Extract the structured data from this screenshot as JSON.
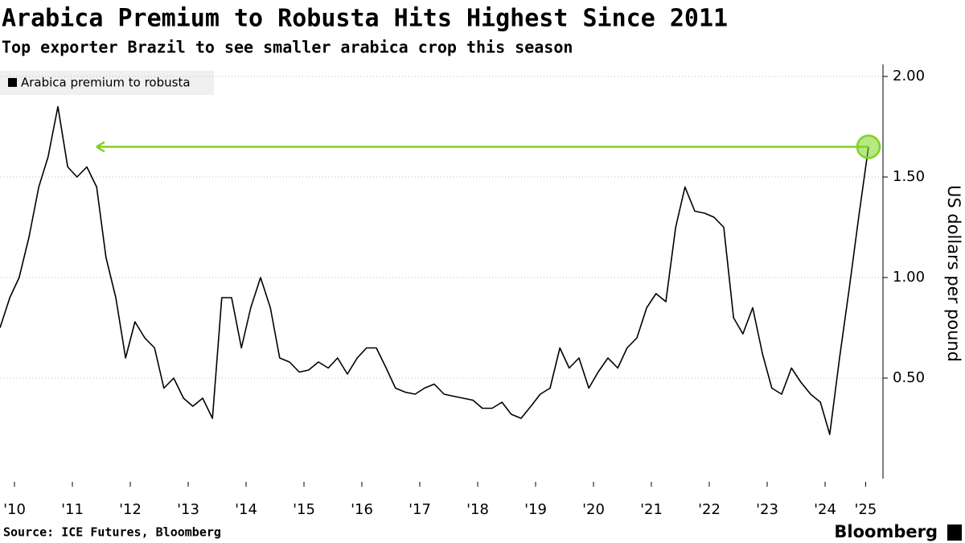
{
  "chart_data": {
    "type": "line",
    "title": "Arabica Premium to Robusta Hits Highest Since 2011",
    "subtitle": "Top exporter Brazil to see smaller arabica crop this season",
    "source": "Source: ICE Futures, Bloomberg",
    "brand": "Bloomberg",
    "y_label": "US dollars per pound",
    "x": [
      2010.25,
      2010.42,
      2010.58,
      2010.75,
      2010.92,
      2011.08,
      2011.25,
      2011.42,
      2011.58,
      2011.75,
      2011.92,
      2012.08,
      2012.25,
      2012.42,
      2012.58,
      2012.75,
      2012.92,
      2013.08,
      2013.25,
      2013.42,
      2013.58,
      2013.75,
      2013.92,
      2014.08,
      2014.25,
      2014.42,
      2014.58,
      2014.75,
      2014.92,
      2015.08,
      2015.25,
      2015.42,
      2015.58,
      2015.75,
      2015.92,
      2016.08,
      2016.25,
      2016.42,
      2016.58,
      2016.75,
      2016.92,
      2017.08,
      2017.25,
      2017.42,
      2017.58,
      2017.75,
      2017.92,
      2018.08,
      2018.25,
      2018.42,
      2018.58,
      2018.75,
      2018.92,
      2019.08,
      2019.25,
      2019.42,
      2019.58,
      2019.75,
      2019.92,
      2020.08,
      2020.25,
      2020.42,
      2020.58,
      2020.75,
      2020.92,
      2021.08,
      2021.25,
      2021.42,
      2021.58,
      2021.75,
      2021.92,
      2022.08,
      2022.25,
      2022.42,
      2022.58,
      2022.75,
      2022.92,
      2023.08,
      2023.25,
      2023.42,
      2023.58,
      2023.75,
      2023.92,
      2024.08,
      2024.25,
      2024.42,
      2024.58,
      2024.75,
      2024.92,
      2025.08,
      2025.25
    ],
    "series": [
      {
        "name": "Arabica premium to robusta",
        "color": "#000000",
        "values": [
          0.75,
          0.9,
          1.0,
          1.2,
          1.45,
          1.6,
          1.85,
          1.55,
          1.5,
          1.55,
          1.45,
          1.1,
          0.9,
          0.6,
          0.78,
          0.7,
          0.65,
          0.45,
          0.5,
          0.4,
          0.36,
          0.4,
          0.3,
          0.9,
          0.9,
          0.65,
          0.85,
          1.0,
          0.85,
          0.6,
          0.58,
          0.53,
          0.54,
          0.58,
          0.55,
          0.6,
          0.52,
          0.6,
          0.65,
          0.65,
          0.55,
          0.45,
          0.43,
          0.42,
          0.45,
          0.47,
          0.42,
          0.41,
          0.4,
          0.39,
          0.35,
          0.35,
          0.38,
          0.32,
          0.3,
          0.36,
          0.42,
          0.45,
          0.65,
          0.55,
          0.6,
          0.45,
          0.53,
          0.6,
          0.55,
          0.65,
          0.7,
          0.85,
          0.92,
          0.88,
          1.25,
          1.45,
          1.33,
          1.32,
          1.3,
          1.25,
          0.8,
          0.72,
          0.85,
          0.62,
          0.45,
          0.42,
          0.55,
          0.48,
          0.42,
          0.38,
          0.22,
          0.6,
          0.95,
          1.3,
          1.65
        ]
      }
    ],
    "xlim": [
      2010.25,
      2025.5
    ],
    "ylim": [
      0,
      2.06
    ],
    "xticks": [
      {
        "value": 2010.5,
        "label": "'10"
      },
      {
        "value": 2011.5,
        "label": "'11"
      },
      {
        "value": 2012.5,
        "label": "'12"
      },
      {
        "value": 2013.5,
        "label": "'13"
      },
      {
        "value": 2014.5,
        "label": "'14"
      },
      {
        "value": 2015.5,
        "label": "'15"
      },
      {
        "value": 2016.5,
        "label": "'16"
      },
      {
        "value": 2017.5,
        "label": "'17"
      },
      {
        "value": 2018.5,
        "label": "'18"
      },
      {
        "value": 2019.5,
        "label": "'19"
      },
      {
        "value": 2020.5,
        "label": "'20"
      },
      {
        "value": 2021.5,
        "label": "'21"
      },
      {
        "value": 2022.5,
        "label": "'22"
      },
      {
        "value": 2023.5,
        "label": "'23"
      },
      {
        "value": 2024.5,
        "label": "'24"
      },
      {
        "value": 2025.2,
        "label": "'25"
      }
    ],
    "yticks": [
      {
        "value": 0.5,
        "label": "0.50"
      },
      {
        "value": 1,
        "label": "1.00"
      },
      {
        "value": 1.5,
        "label": "1.50"
      },
      {
        "value": 2,
        "label": "2.00"
      }
    ],
    "grid": true
  }
}
